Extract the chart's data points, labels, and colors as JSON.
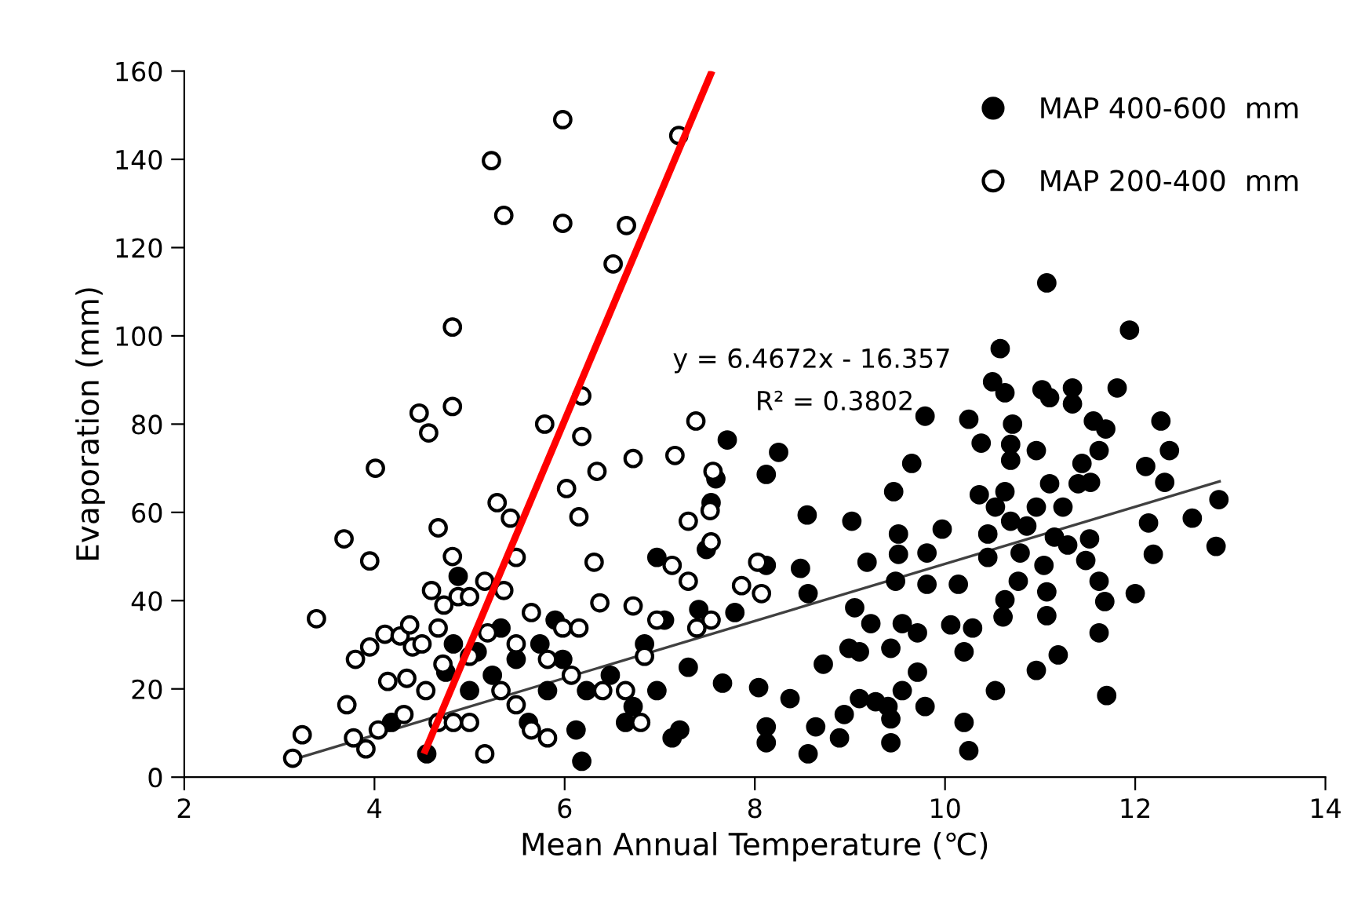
{
  "chart_data": {
    "type": "scatter",
    "xlabel": "Mean Annual Temperature (℃)",
    "ylabel": "Evaporation (mm)",
    "xlim": [
      2,
      14
    ],
    "xticks": [
      2,
      4,
      6,
      8,
      10,
      12,
      14
    ],
    "ylim": [
      0,
      160
    ],
    "yticks": [
      0,
      20,
      40,
      60,
      80,
      100,
      120,
      140,
      160
    ],
    "grid": false,
    "legend": "top right",
    "annotations": [
      "y = 6.4672x - 16.357",
      "R² = 0.3802"
    ],
    "series": [
      {
        "name": "MAP 400-600  mm",
        "color": "#000000",
        "marker": "circle",
        "x": [
          4.18,
          4.55,
          4.88,
          4.75,
          5.0,
          5.24,
          5.49,
          5.74,
          5.82,
          5.62,
          5.9,
          5.98,
          6.12,
          6.18,
          6.23,
          6.48,
          6.64,
          6.72,
          6.84,
          6.97,
          6.97,
          7.13,
          7.21,
          7.05,
          7.3,
          7.41,
          7.49,
          7.54,
          7.59,
          7.66,
          7.71,
          7.79,
          5.08,
          5.33,
          4.83,
          8.25,
          8.12,
          8.55,
          9.02,
          9.65,
          9.46,
          9.51,
          9.51,
          9.18,
          9.97,
          9.81,
          8.12,
          8.48,
          8.56,
          9.05,
          9.22,
          9.55,
          9.71,
          9.48,
          9.81,
          10.14,
          10.06,
          10.29,
          10.2,
          9.1,
          8.99,
          8.72,
          9.43,
          8.04,
          8.37,
          9.1,
          9.27,
          9.55,
          9.71,
          9.79,
          9.4,
          8.94,
          8.12,
          8.64,
          8.12,
          8.56,
          8.89,
          9.43,
          9.43,
          10.2,
          10.25,
          10.53,
          10.96,
          11.19,
          11.07,
          11.07,
          10.63,
          10.61,
          10.77,
          11.04,
          10.79,
          10.45,
          10.45,
          10.86,
          11.15,
          11.29,
          11.52,
          11.48,
          11.62,
          11.68,
          11.62,
          11.7,
          12.0,
          12.19,
          12.14,
          12.6,
          12.85,
          12.88,
          12.31,
          12.11,
          12.36,
          12.27,
          11.81,
          11.94,
          11.07,
          10.58,
          10.5,
          10.63,
          11.02,
          11.1,
          11.34,
          11.34,
          11.56,
          11.69,
          11.62,
          11.44,
          10.71,
          10.69,
          10.69,
          10.38,
          10.25,
          9.79,
          10.96,
          11.1,
          10.96,
          11.24,
          11.4,
          11.53,
          10.69,
          10.36,
          10.53,
          10.63
        ],
        "values": [
          12.4,
          5.3,
          45.5,
          23.8,
          19.6,
          23.1,
          26.7,
          30.2,
          19.6,
          12.4,
          35.6,
          26.7,
          10.7,
          3.6,
          19.6,
          23.1,
          12.4,
          16,
          30.2,
          49.8,
          19.6,
          8.9,
          10.7,
          35.6,
          24.9,
          38,
          51.6,
          62.2,
          67.6,
          21.3,
          76.4,
          37.3,
          28.4,
          33.8,
          30.2,
          73.6,
          68.6,
          59.4,
          58,
          71.1,
          64.7,
          55.1,
          50.5,
          48.7,
          56.2,
          50.8,
          48,
          47.3,
          41.6,
          38.4,
          34.8,
          34.8,
          32.7,
          44.4,
          43.7,
          43.7,
          34.5,
          33.8,
          28.4,
          28.4,
          29.2,
          25.6,
          29.2,
          20.3,
          17.8,
          17.8,
          17.1,
          19.6,
          23.8,
          16,
          16,
          14.2,
          11.4,
          11.4,
          7.8,
          5.3,
          8.9,
          13.2,
          7.8,
          12.4,
          6,
          19.6,
          24.2,
          27.7,
          36.6,
          42,
          40.2,
          36.3,
          44.4,
          48,
          50.8,
          49.8,
          55.1,
          56.9,
          54.4,
          52.6,
          54,
          49.1,
          44.4,
          39.8,
          32.7,
          18.5,
          41.6,
          50.5,
          57.6,
          58.7,
          52.3,
          62.9,
          66.8,
          70.4,
          74,
          80.7,
          88.2,
          101.3,
          112,
          97.1,
          89.6,
          87.1,
          87.8,
          86,
          88.2,
          84.6,
          80.7,
          78.9,
          74,
          71.1,
          80,
          75.4,
          71.8,
          75.7,
          81.1,
          81.8,
          74,
          66.5,
          61.2,
          61.2,
          66.5,
          66.8,
          58,
          64,
          61.2,
          64.7
        ]
      },
      {
        "name": "MAP 200-400  mm",
        "color": "#ffffff",
        "marker": "circle",
        "x": [
          3.14,
          3.24,
          3.39,
          3.68,
          3.71,
          3.8,
          3.95,
          4.01,
          3.95,
          3.91,
          3.78,
          4.04,
          4.11,
          4.27,
          4.37,
          4.47,
          4.34,
          4.4,
          4.14,
          4.31,
          4.57,
          4.67,
          4.6,
          4.82,
          4.82,
          4.82,
          4.73,
          4.88,
          4.54,
          4.72,
          5.0,
          5.0,
          5.19,
          5.23,
          5.36,
          5.29,
          5.43,
          5.36,
          5.49,
          5.65,
          5.16,
          5.49,
          5.79,
          5.98,
          5.98,
          6.02,
          6.15,
          6.18,
          6.18,
          6.31,
          6.34,
          6.51,
          6.65,
          6.72,
          6.37,
          6.72,
          6.84,
          7.16,
          7.2,
          7.38,
          7.3,
          7.3,
          7.39,
          7.56,
          7.53,
          7.54,
          7.86,
          8.03,
          8.07,
          5.82,
          5.98,
          6.15,
          6.64,
          6.8,
          5.0,
          5.16,
          4.67,
          4.83,
          5.65,
          5.82,
          5.33,
          5.49,
          4.67,
          4.5,
          6.07,
          6.4,
          6.97,
          7.13,
          7.54
        ],
        "values": [
          4.3,
          9.6,
          35.9,
          54,
          16.4,
          26.7,
          29.5,
          70,
          49,
          6.4,
          8.9,
          10.7,
          32.4,
          32,
          34.5,
          82.5,
          22.4,
          29.5,
          21.7,
          14.2,
          78,
          56.5,
          42.3,
          102,
          84,
          50,
          39,
          40.9,
          19.6,
          25.6,
          27.4,
          12.4,
          32.7,
          139.7,
          127.3,
          62.2,
          58.7,
          42.3,
          49.8,
          37.3,
          5.3,
          16.4,
          80,
          149,
          125.5,
          65.4,
          59,
          86.4,
          77.2,
          48.7,
          69.3,
          116.3,
          125,
          72.2,
          39.5,
          38.8,
          27.4,
          72.9,
          145.4,
          80.7,
          58,
          44.4,
          33.8,
          69.3,
          60.4,
          53.3,
          43.4,
          48.7,
          41.6,
          26.7,
          33.8,
          33.8,
          19.6,
          12.4,
          40.9,
          44.4,
          12.4,
          12.4,
          10.7,
          8.9,
          19.6,
          30.2,
          33.8,
          30.2,
          23.1,
          19.6,
          35.6,
          48,
          35.6
        ]
      },
      {
        "type": "line",
        "color": "#404040",
        "x": [
          3.1,
          12.9
        ],
        "values": [
          3.7,
          67.1
        ]
      },
      {
        "type": "line",
        "color": "#ff0000",
        "x": [
          4.52,
          7.55
        ],
        "values": [
          5.3,
          160
        ]
      }
    ]
  }
}
